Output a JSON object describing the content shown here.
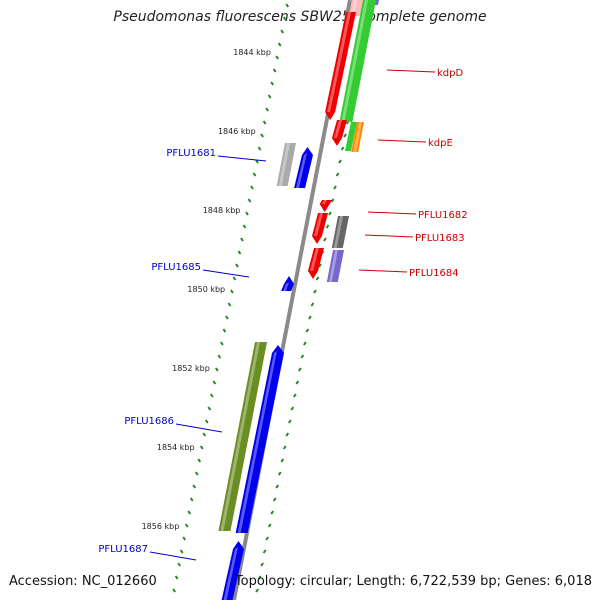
{
  "title": "Pseudomonas fluorescens SBW25, complete genome",
  "footer": {
    "accession": "Accession: NC_012660",
    "summary": "Topology: circular; Length: 6,722,539 bp; Genes: 6,018"
  },
  "colors": {
    "backbone": "#8a8a8a",
    "tick_marks": "#1f8a1f",
    "label_forward_strand": "#cc0000",
    "label_reverse_strand": "#0000cc"
  },
  "ruler": [
    {
      "label": "1844 kbp"
    },
    {
      "label": "1846 kbp"
    },
    {
      "label": "1848 kbp"
    },
    {
      "label": "1850 kbp"
    },
    {
      "label": "1852 kbp"
    },
    {
      "label": "1854 kbp"
    },
    {
      "label": "1856 kbp"
    }
  ],
  "gene_labels": [
    {
      "text": "kdpD",
      "strand": "outer"
    },
    {
      "text": "kdpE",
      "strand": "outer"
    },
    {
      "text": "PFLU1682",
      "strand": "outer"
    },
    {
      "text": "PFLU1683",
      "strand": "outer"
    },
    {
      "text": "PFLU1684",
      "strand": "outer"
    },
    {
      "text": "PFLU1681",
      "strand": "inner"
    },
    {
      "text": "PFLU1685",
      "strand": "inner"
    },
    {
      "text": "PFLU1686",
      "strand": "inner"
    },
    {
      "text": "PFLU1687",
      "strand": "inner"
    }
  ],
  "features": [
    {
      "name": "kdpD-gene",
      "color": "#ee0000"
    },
    {
      "name": "kdpC-gene-top",
      "color": "#ee0000"
    },
    {
      "name": "kdpE-gene",
      "color": "#ee0000"
    },
    {
      "name": "green-operon-feature",
      "color": "#33cc33"
    },
    {
      "name": "kdpE-orange-feature",
      "color": "#ff8800"
    },
    {
      "name": "top-purple-feature",
      "color": "#7766cc"
    },
    {
      "name": "top-pink-feature",
      "color": "#ffbbbb"
    },
    {
      "name": "PFLU1681-grey-feature",
      "color": "#aaaaaa"
    },
    {
      "name": "PFLU1681-blue-gene",
      "color": "#0000ee"
    },
    {
      "name": "PFLU1682-gene",
      "color": "#ee0000"
    },
    {
      "name": "PFLU1682-feature",
      "color": "#ee0000"
    },
    {
      "name": "PFLU1683-grey-feature",
      "color": "#666666"
    },
    {
      "name": "PFLU1684-gene",
      "color": "#ee0000"
    },
    {
      "name": "PFLU1684-purple-feature",
      "color": "#7766cc"
    },
    {
      "name": "PFLU1685-gene",
      "color": "#0000ee"
    },
    {
      "name": "PFLU1686-olive-feature",
      "color": "#6b8e23"
    },
    {
      "name": "PFLU1686-gene",
      "color": "#0000ee"
    },
    {
      "name": "PFLU1687-gene",
      "color": "#0000ee"
    }
  ]
}
